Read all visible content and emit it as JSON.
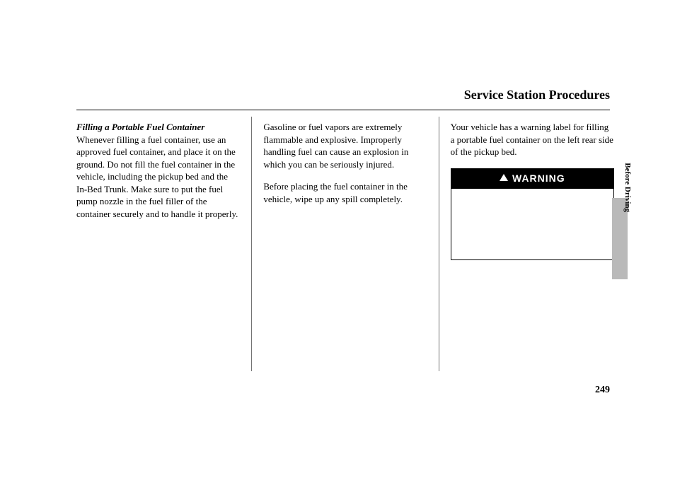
{
  "header": {
    "title": "Service Station Procedures"
  },
  "col1": {
    "subhead": "Filling a Portable Fuel Container",
    "body": "Whenever filling a fuel container, use an approved fuel container, and place it on the ground. Do not fill the fuel container in the vehicle, including the pickup bed and the In-Bed Trunk. Make sure to put the fuel pump nozzle in the fuel filler of the container securely and to handle it properly."
  },
  "col2": {
    "p1": "Gasoline or fuel vapors are extremely flammable and explosive. Improperly handling fuel can cause an explosion in which you can be seriously injured.",
    "p2": "Before placing the fuel container in the vehicle, wipe up any spill completely."
  },
  "col3": {
    "intro": "Your vehicle has a warning label for filling a portable fuel container on the left rear side of the pickup bed.",
    "warning_label": "WARNING"
  },
  "side_tab": {
    "label": "Before Driving"
  },
  "page_number": "249"
}
